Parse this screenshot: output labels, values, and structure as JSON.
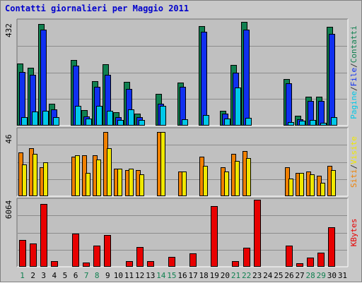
{
  "title": "Contatti giornalieri per Maggio 2011",
  "chart_data": [
    {
      "type": "bar",
      "panel": "contatti",
      "categories": [
        "1",
        "2",
        "3",
        "4",
        "5",
        "6",
        "7",
        "8",
        "9",
        "10",
        "11",
        "12",
        "13",
        "14",
        "15",
        "16",
        "17",
        "18",
        "19",
        "20",
        "21",
        "22",
        "23",
        "24",
        "25",
        "26",
        "27",
        "28",
        "29",
        "30",
        "31"
      ],
      "weekend_days": [
        "1",
        "7",
        "8",
        "14",
        "15",
        "21",
        "22",
        "28",
        "29"
      ],
      "ymax_label": "432",
      "ylim": [
        0,
        432
      ],
      "right_labels": [
        {
          "text": "Pagine",
          "color": "#00c8e8"
        },
        {
          "text": "/",
          "color": "#333333"
        },
        {
          "text": "File",
          "color": "#1030f0"
        },
        {
          "text": "/",
          "color": "#333333"
        },
        {
          "text": "Contatti",
          "color": "#108050"
        }
      ],
      "series": [
        {
          "name": "Contatti",
          "color": "#108050",
          "values": [
            256,
            238,
            418,
            90,
            0,
            270,
            64,
            184,
            252,
            56,
            180,
            50,
            0,
            130,
            0,
            178,
            0,
            410,
            0,
            62,
            250,
            425,
            0,
            0,
            0,
            190,
            40,
            118,
            118,
            406,
            0
          ]
        },
        {
          "name": "File",
          "color": "#1030f0",
          "values": [
            220,
            210,
            395,
            66,
            0,
            245,
            38,
            160,
            210,
            34,
            150,
            34,
            0,
            90,
            0,
            160,
            0,
            386,
            0,
            48,
            216,
            395,
            0,
            0,
            0,
            173,
            25,
            102,
            102,
            376,
            0
          ]
        },
        {
          "name": "Pagine",
          "color": "#00c8e8",
          "values": [
            34,
            58,
            62,
            36,
            0,
            82,
            28,
            82,
            60,
            24,
            66,
            22,
            0,
            82,
            0,
            25,
            0,
            44,
            0,
            28,
            158,
            31,
            0,
            0,
            0,
            15,
            20,
            24,
            13,
            34,
            0
          ]
        }
      ]
    },
    {
      "type": "bar",
      "panel": "visite",
      "categories": [
        "1",
        "2",
        "3",
        "4",
        "5",
        "6",
        "7",
        "8",
        "9",
        "10",
        "11",
        "12",
        "13",
        "14",
        "15",
        "16",
        "17",
        "18",
        "19",
        "20",
        "21",
        "22",
        "23",
        "24",
        "25",
        "26",
        "27",
        "28",
        "29",
        "30",
        "31"
      ],
      "ymax_label": "46",
      "ylim": [
        0,
        46
      ],
      "right_labels": [
        {
          "text": "Siti",
          "color": "#f08000"
        },
        {
          "text": "/",
          "color": "#333333"
        },
        {
          "text": "Visite",
          "color": "#f0e800"
        }
      ],
      "series": [
        {
          "name": "Siti",
          "color": "#f08000",
          "values": [
            30,
            33,
            20,
            0,
            0,
            27,
            28,
            28,
            44,
            19,
            18,
            18,
            0,
            44,
            0,
            17,
            0,
            27,
            0,
            20,
            29,
            31,
            0,
            0,
            0,
            20,
            16,
            17,
            14,
            21,
            0
          ]
        },
        {
          "name": "Visite",
          "color": "#f0e800",
          "values": [
            22,
            29,
            23,
            0,
            0,
            28,
            16,
            25,
            33,
            19,
            19,
            15,
            0,
            44,
            0,
            17,
            0,
            21,
            0,
            17,
            24,
            26,
            0,
            0,
            0,
            12,
            16,
            15,
            9,
            18,
            0
          ]
        }
      ]
    },
    {
      "type": "bar",
      "panel": "kbytes",
      "categories": [
        "1",
        "2",
        "3",
        "4",
        "5",
        "6",
        "7",
        "8",
        "9",
        "10",
        "11",
        "12",
        "13",
        "14",
        "15",
        "16",
        "17",
        "18",
        "19",
        "20",
        "21",
        "22",
        "23",
        "24",
        "25",
        "26",
        "27",
        "28",
        "29",
        "30",
        "31"
      ],
      "ymax_label": "6064",
      "ylim": [
        0,
        6064
      ],
      "right_labels": [
        {
          "text": "KBytes",
          "color": "#e80000"
        }
      ],
      "series": [
        {
          "name": "KBytes",
          "color": "#e80000",
          "values": [
            2400,
            2100,
            5700,
            500,
            0,
            3000,
            400,
            1900,
            2900,
            0,
            500,
            1800,
            500,
            0,
            900,
            0,
            1200,
            0,
            5500,
            0,
            500,
            1700,
            6064,
            0,
            0,
            1900,
            300,
            800,
            1300,
            3600,
            0
          ]
        }
      ]
    }
  ]
}
